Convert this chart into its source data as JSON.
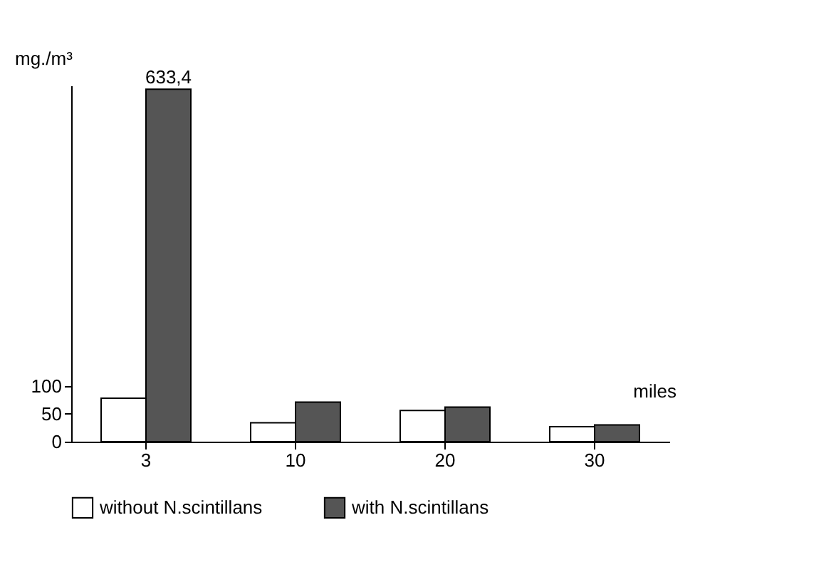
{
  "chart_data": {
    "type": "bar",
    "categories": [
      "3",
      "10",
      "20",
      "30"
    ],
    "xlabel": "miles",
    "ylabel": "mg./m³",
    "series": [
      {
        "name": "without N.scintillans",
        "color": "#ffffff",
        "values": [
          78,
          34,
          56,
          27
        ]
      },
      {
        "name": "with N.scintillans",
        "color": "#555555",
        "values": [
          633.4,
          71,
          62,
          30
        ],
        "value_labels": [
          "633,4",
          null,
          null,
          null
        ]
      }
    ],
    "ylim": [
      0,
      640
    ],
    "yticks": [
      0,
      50,
      100
    ],
    "legend": "bottom"
  }
}
